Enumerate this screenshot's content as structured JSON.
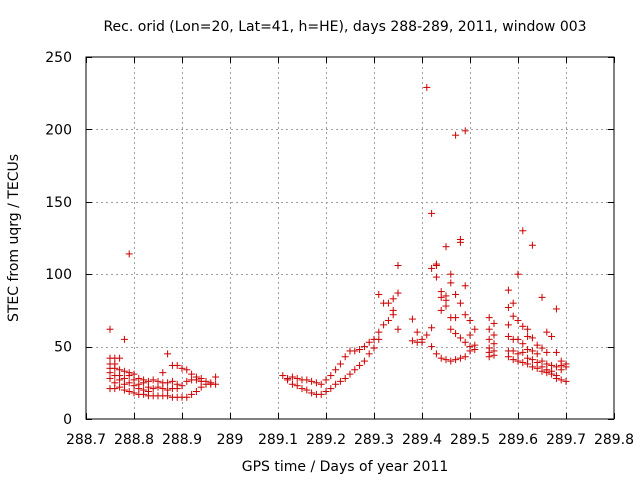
{
  "chart_data": {
    "type": "scatter",
    "title": "Rec. orid (Lon=20, Lat=41, h=HE), days 288-289, 2011, window 003",
    "xlabel": "GPS time / Days of year 2011",
    "ylabel": "STEC from uqrg / TECUs",
    "xlim": [
      288.7,
      289.8
    ],
    "ylim": [
      0,
      250
    ],
    "xticks": [
      288.7,
      288.8,
      288.9,
      289.0,
      289.1,
      289.2,
      289.3,
      289.4,
      289.5,
      289.6,
      289.7,
      289.8
    ],
    "xtick_labels": [
      "288.7",
      "288.8",
      "288.9",
      "289",
      "289.1",
      "289.2",
      "289.3",
      "289.4",
      "289.5",
      "289.6",
      "289.7",
      "289.8"
    ],
    "yticks": [
      0,
      50,
      100,
      150,
      200,
      250
    ],
    "ytick_labels": [
      "0",
      "50",
      "100",
      "150",
      "200",
      "250"
    ],
    "grid": true,
    "marker": "plus",
    "marker_color": "#cc0000",
    "series": [
      {
        "points": [
          [
            288.75,
            62
          ],
          [
            288.75,
            42
          ],
          [
            288.75,
            38
          ],
          [
            288.75,
            35
          ],
          [
            288.75,
            32
          ],
          [
            288.75,
            28
          ],
          [
            288.75,
            21
          ],
          [
            288.76,
            42
          ],
          [
            288.76,
            38
          ],
          [
            288.76,
            35
          ],
          [
            288.76,
            30
          ],
          [
            288.76,
            25
          ],
          [
            288.76,
            21
          ],
          [
            288.77,
            42
          ],
          [
            288.77,
            34
          ],
          [
            288.77,
            30
          ],
          [
            288.77,
            27
          ],
          [
            288.77,
            22
          ],
          [
            288.78,
            55
          ],
          [
            288.78,
            33
          ],
          [
            288.78,
            28
          ],
          [
            288.78,
            24
          ],
          [
            288.78,
            20
          ],
          [
            288.79,
            114
          ],
          [
            288.79,
            32
          ],
          [
            288.79,
            30
          ],
          [
            288.79,
            25
          ],
          [
            288.79,
            19
          ],
          [
            288.8,
            31
          ],
          [
            288.8,
            27
          ],
          [
            288.8,
            23
          ],
          [
            288.8,
            18
          ],
          [
            288.81,
            28
          ],
          [
            288.81,
            24
          ],
          [
            288.81,
            21
          ],
          [
            288.81,
            17
          ],
          [
            288.82,
            27
          ],
          [
            288.82,
            25
          ],
          [
            288.82,
            20
          ],
          [
            288.82,
            17
          ],
          [
            288.83,
            26
          ],
          [
            288.83,
            22
          ],
          [
            288.83,
            19
          ],
          [
            288.83,
            16
          ],
          [
            288.84,
            27
          ],
          [
            288.84,
            21
          ],
          [
            288.84,
            16
          ],
          [
            288.85,
            26
          ],
          [
            288.85,
            22
          ],
          [
            288.85,
            16
          ],
          [
            288.86,
            32
          ],
          [
            288.86,
            25
          ],
          [
            288.86,
            21
          ],
          [
            288.86,
            16
          ],
          [
            288.87,
            45
          ],
          [
            288.87,
            25
          ],
          [
            288.87,
            20
          ],
          [
            288.87,
            16
          ],
          [
            288.88,
            37
          ],
          [
            288.88,
            26
          ],
          [
            288.88,
            21
          ],
          [
            288.88,
            15
          ],
          [
            288.89,
            37
          ],
          [
            288.89,
            24
          ],
          [
            288.89,
            21
          ],
          [
            288.89,
            15
          ],
          [
            288.9,
            35
          ],
          [
            288.9,
            23
          ],
          [
            288.9,
            15
          ],
          [
            288.91,
            34
          ],
          [
            288.91,
            26
          ],
          [
            288.91,
            15
          ],
          [
            288.92,
            31
          ],
          [
            288.92,
            27
          ],
          [
            288.92,
            17
          ],
          [
            288.93,
            29
          ],
          [
            288.93,
            27
          ],
          [
            288.93,
            19
          ],
          [
            288.94,
            28
          ],
          [
            288.94,
            26
          ],
          [
            288.94,
            22
          ],
          [
            288.95,
            26
          ],
          [
            288.95,
            24
          ],
          [
            288.96,
            25
          ],
          [
            288.96,
            24
          ],
          [
            288.97,
            29
          ],
          [
            288.97,
            24
          ],
          [
            289.11,
            30
          ],
          [
            289.12,
            28
          ],
          [
            289.12,
            27
          ],
          [
            289.13,
            29
          ],
          [
            289.13,
            24
          ],
          [
            289.14,
            28
          ],
          [
            289.14,
            23
          ],
          [
            289.15,
            27
          ],
          [
            289.15,
            21
          ],
          [
            289.16,
            27
          ],
          [
            289.16,
            20
          ],
          [
            289.17,
            26
          ],
          [
            289.17,
            18
          ],
          [
            289.18,
            25
          ],
          [
            289.18,
            17
          ],
          [
            289.19,
            24
          ],
          [
            289.19,
            17
          ],
          [
            289.2,
            27
          ],
          [
            289.2,
            19
          ],
          [
            289.21,
            30
          ],
          [
            289.21,
            21
          ],
          [
            289.22,
            34
          ],
          [
            289.22,
            24
          ],
          [
            289.23,
            38
          ],
          [
            289.23,
            26
          ],
          [
            289.24,
            43
          ],
          [
            289.24,
            28
          ],
          [
            289.25,
            47
          ],
          [
            289.25,
            31
          ],
          [
            289.26,
            47
          ],
          [
            289.26,
            34
          ],
          [
            289.27,
            48
          ],
          [
            289.27,
            37
          ],
          [
            289.28,
            50
          ],
          [
            289.28,
            40
          ],
          [
            289.29,
            53
          ],
          [
            289.29,
            45
          ],
          [
            289.3,
            55
          ],
          [
            289.3,
            49
          ],
          [
            289.31,
            60
          ],
          [
            289.31,
            55
          ],
          [
            289.31,
            86
          ],
          [
            289.32,
            65
          ],
          [
            289.32,
            80
          ],
          [
            289.33,
            68
          ],
          [
            289.33,
            80
          ],
          [
            289.34,
            72
          ],
          [
            289.34,
            75
          ],
          [
            289.34,
            83
          ],
          [
            289.35,
            87
          ],
          [
            289.35,
            62
          ],
          [
            289.35,
            106
          ],
          [
            289.38,
            69
          ],
          [
            289.38,
            54
          ],
          [
            289.39,
            60
          ],
          [
            289.39,
            53
          ],
          [
            289.4,
            55
          ],
          [
            289.4,
            53
          ],
          [
            289.41,
            58
          ],
          [
            289.41,
            229
          ],
          [
            289.42,
            104
          ],
          [
            289.42,
            142
          ],
          [
            289.42,
            63
          ],
          [
            289.42,
            50
          ],
          [
            289.43,
            107
          ],
          [
            289.43,
            106
          ],
          [
            289.43,
            98
          ],
          [
            289.43,
            45
          ],
          [
            289.44,
            88
          ],
          [
            289.44,
            84
          ],
          [
            289.44,
            75
          ],
          [
            289.44,
            42
          ],
          [
            289.45,
            119
          ],
          [
            289.45,
            85
          ],
          [
            289.45,
            82
          ],
          [
            289.45,
            78
          ],
          [
            289.45,
            41
          ],
          [
            289.46,
            100
          ],
          [
            289.46,
            94
          ],
          [
            289.46,
            70
          ],
          [
            289.46,
            62
          ],
          [
            289.46,
            40
          ],
          [
            289.47,
            196
          ],
          [
            289.47,
            86
          ],
          [
            289.47,
            70
          ],
          [
            289.47,
            59
          ],
          [
            289.47,
            41
          ],
          [
            289.48,
            124
          ],
          [
            289.48,
            122
          ],
          [
            289.48,
            80
          ],
          [
            289.48,
            56
          ],
          [
            289.48,
            42
          ],
          [
            289.49,
            199
          ],
          [
            289.49,
            92
          ],
          [
            289.49,
            72
          ],
          [
            289.49,
            53
          ],
          [
            289.49,
            43
          ],
          [
            289.5,
            68
          ],
          [
            289.5,
            58
          ],
          [
            289.5,
            50
          ],
          [
            289.5,
            47
          ],
          [
            289.51,
            62
          ],
          [
            289.51,
            51
          ],
          [
            289.51,
            48
          ],
          [
            289.54,
            70
          ],
          [
            289.54,
            62
          ],
          [
            289.54,
            55
          ],
          [
            289.54,
            49
          ],
          [
            289.54,
            46
          ],
          [
            289.54,
            43
          ],
          [
            289.55,
            66
          ],
          [
            289.55,
            58
          ],
          [
            289.55,
            52
          ],
          [
            289.55,
            47
          ],
          [
            289.55,
            44
          ],
          [
            289.58,
            89
          ],
          [
            289.58,
            77
          ],
          [
            289.58,
            65
          ],
          [
            289.58,
            57
          ],
          [
            289.58,
            47
          ],
          [
            289.58,
            43
          ],
          [
            289.59,
            80
          ],
          [
            289.59,
            71
          ],
          [
            289.59,
            55
          ],
          [
            289.59,
            47
          ],
          [
            289.59,
            41
          ],
          [
            289.6,
            100
          ],
          [
            289.6,
            68
          ],
          [
            289.6,
            55
          ],
          [
            289.6,
            45
          ],
          [
            289.6,
            40
          ],
          [
            289.61,
            130
          ],
          [
            289.61,
            64
          ],
          [
            289.61,
            52
          ],
          [
            289.61,
            46
          ],
          [
            289.61,
            39
          ],
          [
            289.62,
            62
          ],
          [
            289.62,
            57
          ],
          [
            289.62,
            48
          ],
          [
            289.62,
            42
          ],
          [
            289.62,
            38
          ],
          [
            289.63,
            120
          ],
          [
            289.63,
            56
          ],
          [
            289.63,
            47
          ],
          [
            289.63,
            41
          ],
          [
            289.63,
            36
          ],
          [
            289.64,
            51
          ],
          [
            289.64,
            45
          ],
          [
            289.64,
            39
          ],
          [
            289.64,
            35
          ],
          [
            289.65,
            84
          ],
          [
            289.65,
            49
          ],
          [
            289.65,
            40
          ],
          [
            289.65,
            36
          ],
          [
            289.65,
            33
          ],
          [
            289.66,
            60
          ],
          [
            289.66,
            46
          ],
          [
            289.66,
            38
          ],
          [
            289.66,
            34
          ],
          [
            289.66,
            32
          ],
          [
            289.67,
            57
          ],
          [
            289.67,
            37
          ],
          [
            289.67,
            33
          ],
          [
            289.67,
            31
          ],
          [
            289.68,
            76
          ],
          [
            289.68,
            46
          ],
          [
            289.68,
            36
          ],
          [
            289.68,
            30
          ],
          [
            289.68,
            28
          ],
          [
            289.69,
            40
          ],
          [
            289.69,
            37
          ],
          [
            289.69,
            34
          ],
          [
            289.69,
            27
          ],
          [
            289.7,
            38
          ],
          [
            289.7,
            36
          ],
          [
            289.7,
            26
          ]
        ]
      }
    ]
  }
}
